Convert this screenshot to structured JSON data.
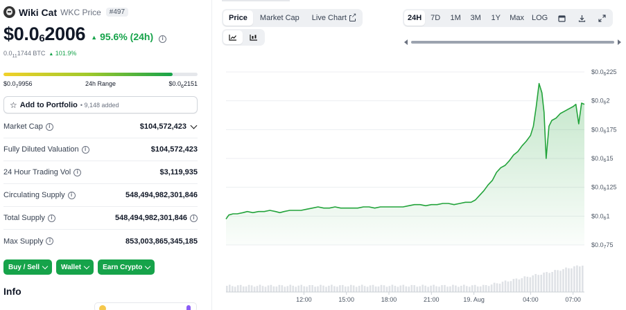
{
  "coin": {
    "name": "Wiki Cat",
    "symbol_label": "WKC Price",
    "rank": "#497",
    "price_prefix": "$0.0",
    "price_sub": "6",
    "price_suffix": "2006",
    "change_arrow": "▲",
    "change": "95.6% (24h)",
    "btc_prefix": "0.0",
    "btc_sub": "11",
    "btc_suffix": "1744 BTC",
    "btc_change_arrow": "▲",
    "btc_change": "101.9%"
  },
  "range24h": {
    "low_prefix": "$0.0",
    "low_sub": "7",
    "low_suffix": "9956",
    "label": "24h Range",
    "high_prefix": "$0.0",
    "high_sub": "6",
    "high_suffix": "2151",
    "position_fraction": 0.87
  },
  "portfolio": {
    "label": "Add to Portfolio",
    "added": "• 9,148 added"
  },
  "stats": [
    {
      "label": "Market Cap",
      "value": "$104,572,423",
      "info": true,
      "dropdown": true
    },
    {
      "label": "Fully Diluted Valuation",
      "value": "$104,572,423",
      "info": true
    },
    {
      "label": "24 Hour Trading Vol",
      "value": "$3,119,935",
      "info": true
    },
    {
      "label": "Circulating Supply",
      "value": "548,494,982,301,846",
      "info": true
    },
    {
      "label": "Total Supply",
      "value": "548,494,982,301,846",
      "info": true,
      "value_info": true
    },
    {
      "label": "Max Supply",
      "value": "853,003,865,345,185",
      "info": true
    }
  ],
  "actions": {
    "buy_sell": "Buy / Sell",
    "wallet": "Wallet",
    "earn": "Earn Crypto"
  },
  "info_heading": "Info",
  "tabs": {
    "price": "Price",
    "market_cap": "Market Cap",
    "live_chart": "Live Chart"
  },
  "ranges": [
    "24H",
    "7D",
    "1M",
    "3M",
    "1Y",
    "Max",
    "LOG"
  ],
  "active_range": "24H",
  "colors": {
    "accent_green": "#16a34a",
    "line_green": "#22a33a"
  },
  "chart_data": {
    "type": "area",
    "y_ticks": [
      {
        "prefix": "$0.0",
        "sub": "6",
        "suffix": "225",
        "value": 2.25e-05
      },
      {
        "prefix": "$0.0",
        "sub": "6",
        "suffix": "2",
        "value": 2e-05
      },
      {
        "prefix": "$0.0",
        "sub": "6",
        "suffix": "175",
        "value": 1.75e-05
      },
      {
        "prefix": "$0.0",
        "sub": "6",
        "suffix": "15",
        "value": 1.5e-05
      },
      {
        "prefix": "$0.0",
        "sub": "6",
        "suffix": "125",
        "value": 1.25e-05
      },
      {
        "prefix": "$0.0",
        "sub": "6",
        "suffix": "1",
        "value": 1e-05
      },
      {
        "prefix": "$0.0",
        "sub": "7",
        "suffix": "75",
        "value": 7.5e-06
      }
    ],
    "ylim": [
      7.5e-06,
      2.25e-05
    ],
    "x_ticks": [
      "12:00",
      "15:00",
      "18:00",
      "21:00",
      "19. Aug",
      "04:00",
      "07:00"
    ],
    "x_tick_hours": [
      3,
      6,
      9,
      12,
      15,
      19,
      22
    ],
    "xlim_hours": [
      -2.5,
      22.8
    ],
    "series": [
      {
        "x_hours": [
          -2.5,
          -2.3,
          -2.0,
          -1.7,
          -1.3,
          -1.0,
          -0.6,
          -0.2,
          0.2,
          0.6,
          1.0,
          1.3,
          1.6,
          2.0,
          2.4,
          2.8,
          3.2,
          3.6,
          4.0,
          4.4,
          4.8,
          5.2,
          5.6,
          6.0,
          6.4,
          6.8,
          7.2,
          7.6,
          8.0,
          8.4,
          8.8,
          9.2,
          9.6,
          10.0,
          10.4,
          10.8,
          11.2,
          11.6,
          12.0,
          12.4,
          12.8,
          13.2,
          13.6,
          14.0,
          14.4,
          14.8,
          15.1,
          15.4,
          15.7,
          16.0,
          16.3,
          16.6,
          16.9,
          17.2,
          17.5,
          17.8,
          18.1,
          18.4,
          18.7,
          19.0,
          19.2,
          19.4,
          19.6,
          19.8,
          19.95,
          20.1,
          20.3,
          20.5,
          20.8,
          21.1,
          21.4,
          21.7,
          22.0,
          22.2,
          22.4,
          22.6,
          22.8
        ],
        "values": [
          9.75e-06,
          1.01e-05,
          1.02e-05,
          1.02e-05,
          1.03e-05,
          1.04e-05,
          1.03e-05,
          1.04e-05,
          1.04e-05,
          1.05e-05,
          1.04e-05,
          1.03e-05,
          1.04e-05,
          1.05e-05,
          1.05e-05,
          1.05e-05,
          1.06e-05,
          1.07e-05,
          1.08e-05,
          1.07e-05,
          1.07e-05,
          1.08e-05,
          1.07e-05,
          1.07e-05,
          1.07e-05,
          1.07e-05,
          1.08e-05,
          1.08e-05,
          1.07e-05,
          1.08e-05,
          1.08e-05,
          1.08e-05,
          1.08e-05,
          1.08e-05,
          1.09e-05,
          1.1e-05,
          1.1e-05,
          1.09e-05,
          1.1e-05,
          1.1e-05,
          1.11e-05,
          1.11e-05,
          1.1e-05,
          1.11e-05,
          1.12e-05,
          1.12e-05,
          1.14e-05,
          1.18e-05,
          1.22e-05,
          1.27e-05,
          1.31e-05,
          1.38e-05,
          1.42e-05,
          1.44e-05,
          1.48e-05,
          1.53e-05,
          1.56e-05,
          1.61e-05,
          1.65e-05,
          1.7e-05,
          1.78e-05,
          1.95e-05,
          2.15e-05,
          2.07e-05,
          1.9e-05,
          1.5e-05,
          1.78e-05,
          1.83e-05,
          1.85e-05,
          1.89e-05,
          1.91e-05,
          1.93e-05,
          1.95e-05,
          1.97e-05,
          1.8e-05,
          1.98e-05,
          1.97e-05
        ]
      }
    ],
    "volume": "bars",
    "grid": true,
    "legend": "none"
  }
}
